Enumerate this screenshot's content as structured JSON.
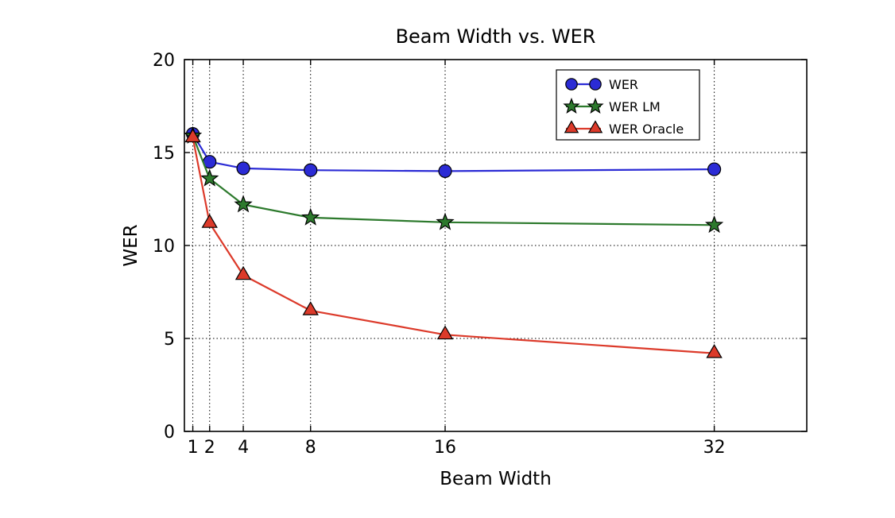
{
  "chart_data": {
    "type": "line",
    "title": "Beam Width vs. WER",
    "xlabel": "Beam Width",
    "ylabel": "WER",
    "x": [
      1,
      2,
      4,
      8,
      16,
      32
    ],
    "series": [
      {
        "name": "WER",
        "marker": "circle",
        "color": "#2b2bd5",
        "values": [
          16.0,
          14.5,
          14.15,
          14.05,
          14.0,
          14.1
        ]
      },
      {
        "name": "WER LM",
        "marker": "star",
        "color": "#2d7a2d",
        "values": [
          15.9,
          13.6,
          12.2,
          11.5,
          11.25,
          11.1
        ]
      },
      {
        "name": "WER Oracle",
        "marker": "triangle",
        "color": "#dc3a2a",
        "values": [
          15.8,
          11.2,
          8.4,
          6.5,
          5.2,
          4.2
        ]
      }
    ],
    "xlim": [
      0.5,
      37.5
    ],
    "ylim": [
      0,
      20
    ],
    "xticks": [
      1,
      2,
      4,
      8,
      16,
      32
    ],
    "xtick_labels": [
      "1",
      "2",
      "4",
      "8",
      "16",
      "32"
    ],
    "yticks": [
      0,
      5,
      10,
      15,
      20
    ],
    "ytick_labels": [
      "0",
      "5",
      "10",
      "15",
      "20"
    ],
    "grid": true,
    "grid_style": "dotted",
    "legend_position": "upper-right",
    "marker_edge_color": "#000000",
    "line_width": 2.2,
    "background": "#ffffff"
  }
}
